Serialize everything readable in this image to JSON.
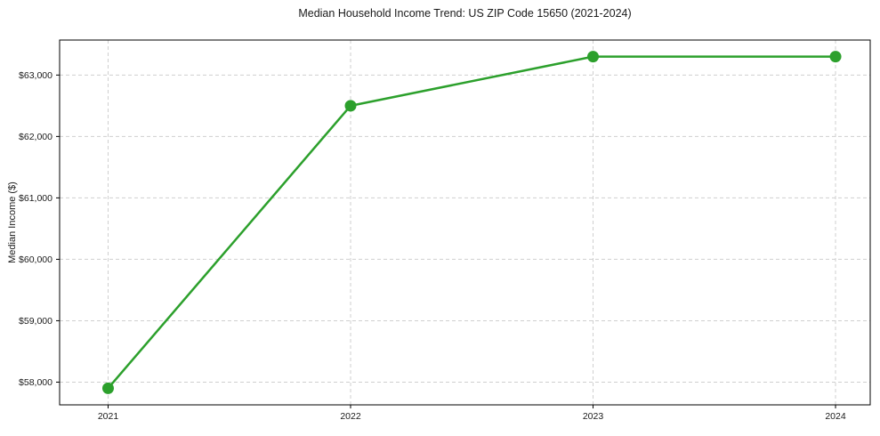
{
  "chart_data": {
    "type": "line",
    "title": "Median Household Income Trend: US ZIP Code 15650 (2021-2024)",
    "xlabel": "",
    "ylabel": "Median Income ($)",
    "series": [
      {
        "name": "Median Household Income",
        "x": [
          2021,
          2022,
          2023,
          2024
        ],
        "values": [
          57900,
          62500,
          63300,
          63300
        ]
      }
    ],
    "xlim": [
      2020.8,
      2024.143
    ],
    "ylim": [
      57630,
      63570
    ],
    "xticks": {
      "values": [
        2021,
        2022,
        2023,
        2024
      ],
      "labels": [
        "2021",
        "2022",
        "2023",
        "2024"
      ]
    },
    "yticks": {
      "values": [
        58000,
        59000,
        60000,
        61000,
        62000,
        63000
      ],
      "labels": [
        "$58,000",
        "$59,000",
        "$60,000",
        "$61,000",
        "$62,000",
        "$63,000"
      ]
    },
    "grid": true,
    "grid_style": "dashed",
    "legend_position": "none",
    "colors": {
      "line": "#2ca02c",
      "marker": "#2ca02c",
      "grid": "#cfcfcf",
      "axis": "#000000",
      "background": "#ffffff",
      "text": "#1a1a1a"
    },
    "marker": "circle"
  }
}
